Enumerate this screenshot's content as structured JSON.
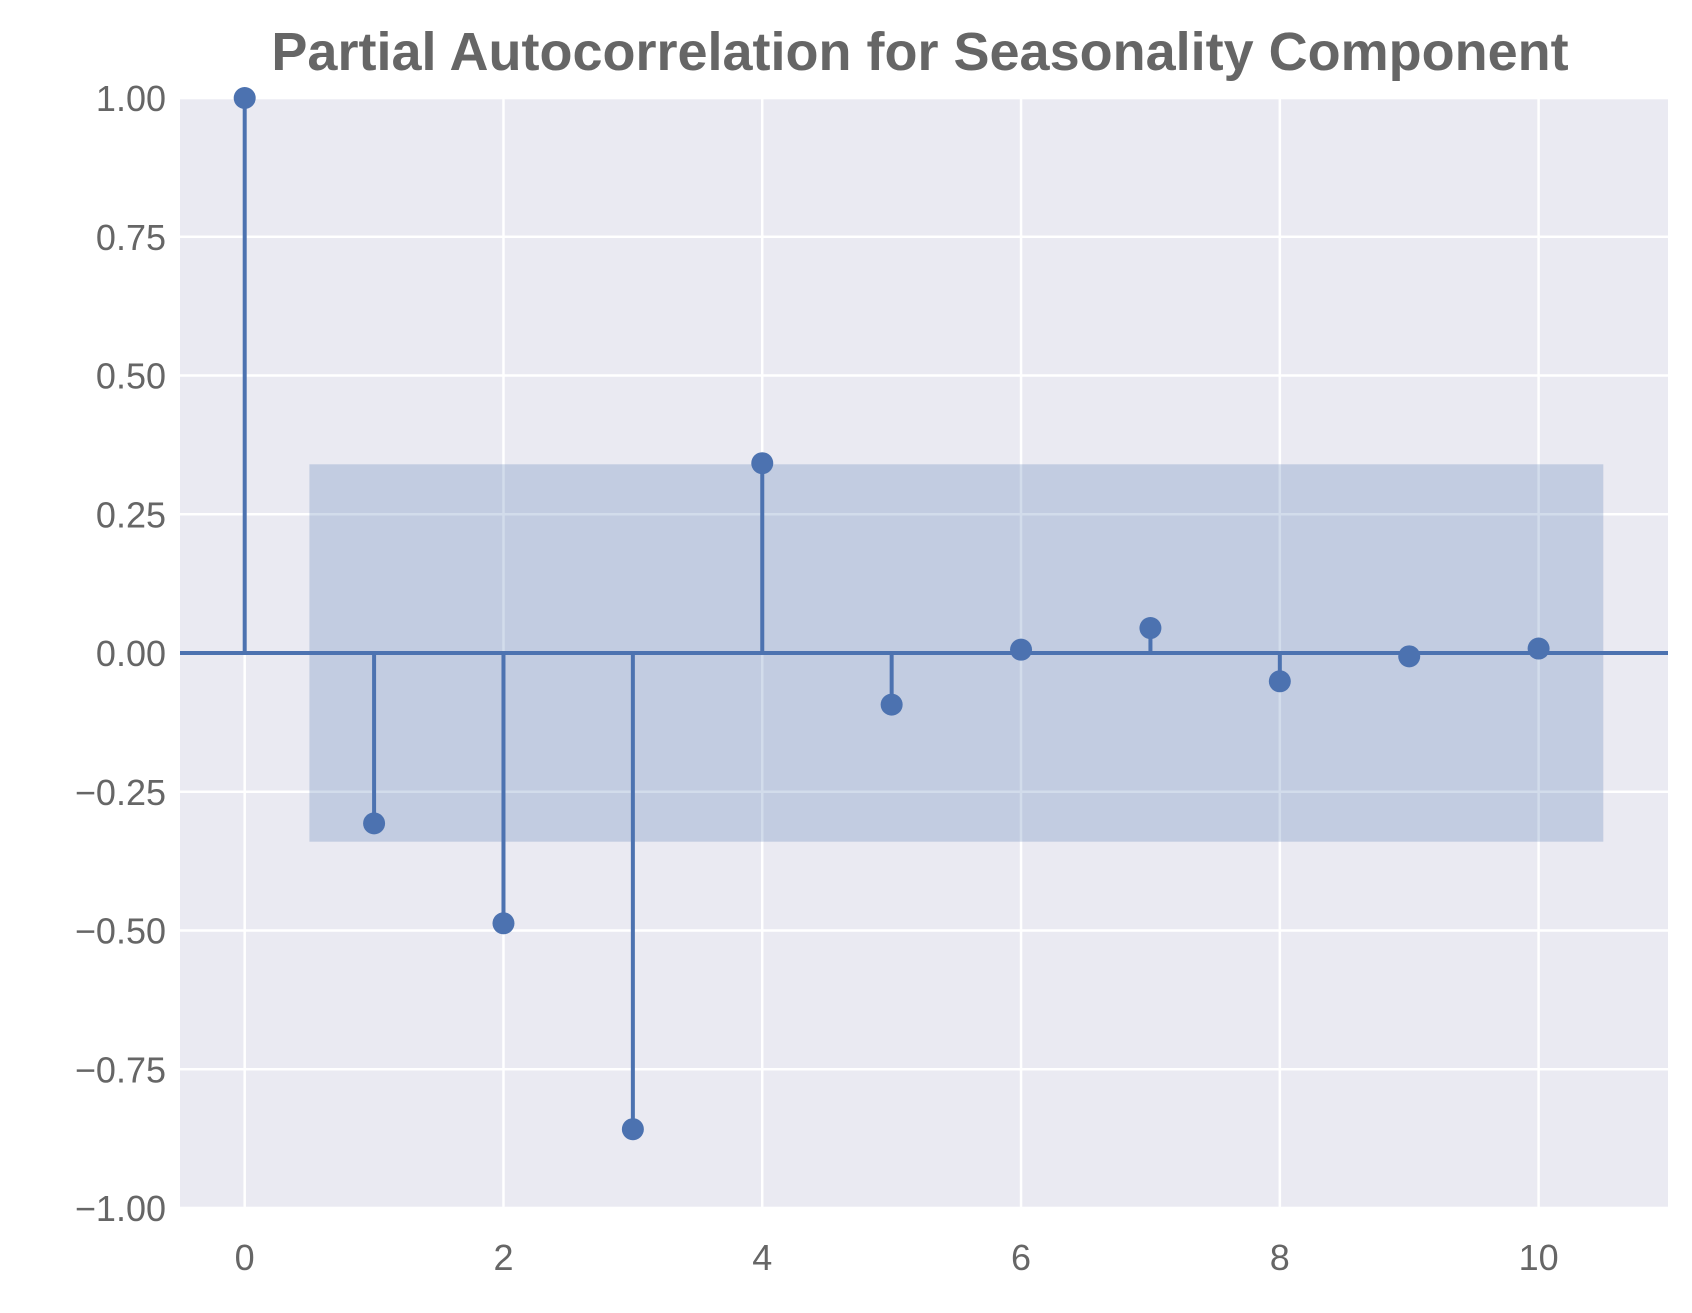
{
  "chart_data": {
    "type": "stem",
    "title": "Partial Autocorrelation for Seasonality Component",
    "xlabel": "",
    "ylabel": "",
    "x": [
      0,
      1,
      2,
      3,
      4,
      5,
      6,
      7,
      8,
      9,
      10
    ],
    "values": [
      1.0,
      -0.307,
      -0.487,
      -0.858,
      0.342,
      -0.093,
      0.006,
      0.045,
      -0.051,
      -0.006,
      0.008
    ],
    "confidence_band": {
      "x_range": [
        0.5,
        10.5
      ],
      "lower": -0.34,
      "upper": 0.34
    },
    "xlim": [
      -0.5,
      11.0
    ],
    "ylim": [
      -1.0,
      1.0
    ],
    "x_ticks": [
      0,
      2,
      4,
      6,
      8,
      10
    ],
    "x_tick_labels": [
      "0",
      "2",
      "4",
      "6",
      "8",
      "10"
    ],
    "y_ticks": [
      1.0,
      0.75,
      0.5,
      0.25,
      0.0,
      -0.25,
      -0.5,
      -0.75,
      -1.0
    ],
    "y_tick_labels": [
      "1.00",
      "0.75",
      "0.50",
      "0.25",
      "0.00",
      "−0.25",
      "−0.50",
      "−0.75",
      "−1.00"
    ],
    "grid": true,
    "colors": {
      "series": "#4c72b0",
      "band": "#4c72b0",
      "plot_background": "#eaeaf2",
      "grid": "#ffffff",
      "text": "#666666"
    }
  }
}
